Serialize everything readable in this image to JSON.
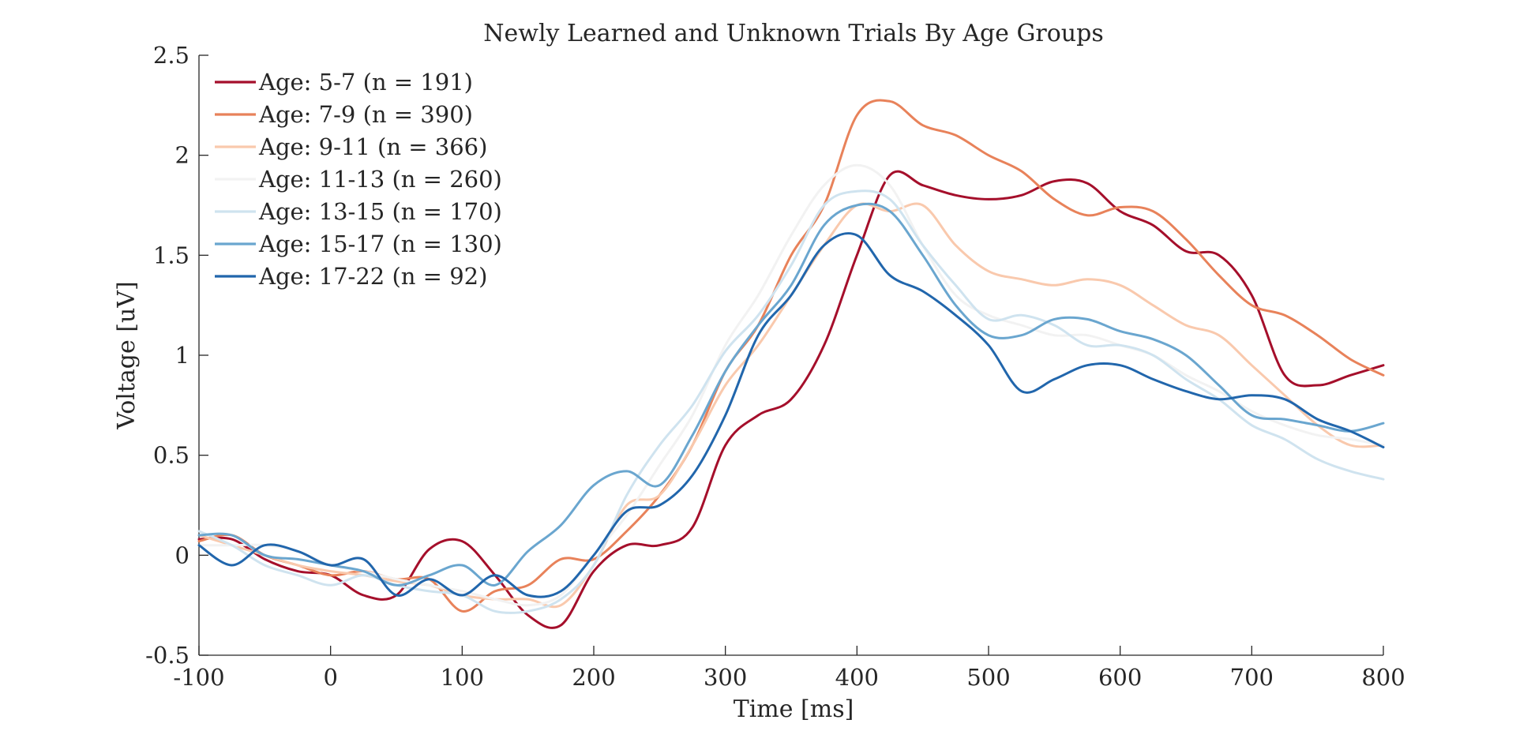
{
  "chart_data": {
    "type": "line",
    "title": "Newly Learned and Unknown Trials By Age Groups",
    "xlabel": "Time [ms]",
    "ylabel": "Voltage [uV]",
    "xlim": [
      -100,
      800
    ],
    "ylim": [
      -0.5,
      2.5
    ],
    "xticks": [
      -100,
      0,
      100,
      200,
      300,
      400,
      500,
      600,
      700,
      800
    ],
    "yticks": [
      -0.5,
      0,
      0.5,
      1,
      1.5,
      2,
      2.5
    ],
    "xtick_labels": [
      "-100",
      "0",
      "100",
      "200",
      "300",
      "400",
      "500",
      "600",
      "700",
      "800"
    ],
    "ytick_labels": [
      "-0.5",
      "0",
      "0.5",
      "1",
      "1.5",
      "2",
      "2.5"
    ],
    "grid": false,
    "legend_position": "top-left",
    "x": [
      -100,
      -75,
      -50,
      -25,
      0,
      25,
      50,
      75,
      100,
      125,
      150,
      175,
      200,
      225,
      250,
      275,
      300,
      325,
      350,
      375,
      400,
      425,
      450,
      475,
      500,
      525,
      550,
      575,
      600,
      625,
      650,
      675,
      700,
      725,
      750,
      775,
      800
    ],
    "series": [
      {
        "name": "Age: 5-7 (n = 191)",
        "color": "#a50f2b",
        "values": [
          0.08,
          0.08,
          -0.02,
          -0.08,
          -0.1,
          -0.2,
          -0.2,
          0.03,
          0.07,
          -0.1,
          -0.3,
          -0.35,
          -0.08,
          0.05,
          0.05,
          0.14,
          0.55,
          0.7,
          0.78,
          1.05,
          1.5,
          1.9,
          1.85,
          1.8,
          1.78,
          1.8,
          1.87,
          1.86,
          1.72,
          1.65,
          1.52,
          1.5,
          1.3,
          0.9,
          0.85,
          0.9,
          0.95
        ]
      },
      {
        "name": "Age: 7-9 (n = 390)",
        "color": "#e8825a",
        "values": [
          0.07,
          0.1,
          0.0,
          -0.05,
          -0.1,
          -0.08,
          -0.12,
          -0.12,
          -0.28,
          -0.18,
          -0.15,
          -0.02,
          -0.02,
          0.12,
          0.3,
          0.55,
          0.92,
          1.15,
          1.5,
          1.75,
          2.2,
          2.27,
          2.15,
          2.1,
          2.0,
          1.92,
          1.78,
          1.7,
          1.74,
          1.72,
          1.58,
          1.4,
          1.25,
          1.2,
          1.1,
          0.98,
          0.9
        ]
      },
      {
        "name": "Age: 9-11 (n = 366)",
        "color": "#f9c9ad",
        "values": [
          0.1,
          0.05,
          0.0,
          -0.05,
          -0.08,
          -0.1,
          -0.13,
          -0.15,
          -0.2,
          -0.22,
          -0.22,
          -0.25,
          -0.05,
          0.25,
          0.3,
          0.55,
          0.85,
          1.05,
          1.3,
          1.55,
          1.75,
          1.72,
          1.75,
          1.55,
          1.42,
          1.38,
          1.35,
          1.38,
          1.35,
          1.25,
          1.15,
          1.1,
          0.95,
          0.8,
          0.65,
          0.55,
          0.55
        ]
      },
      {
        "name": "Age: 11-13 (n = 260)",
        "color": "#f2f2f2",
        "values": [
          0.05,
          0.05,
          0.05,
          0.02,
          -0.05,
          -0.08,
          -0.12,
          -0.15,
          -0.18,
          -0.22,
          -0.25,
          -0.2,
          0.0,
          0.2,
          0.45,
          0.7,
          1.05,
          1.3,
          1.6,
          1.85,
          1.95,
          1.85,
          1.55,
          1.3,
          1.2,
          1.15,
          1.1,
          1.1,
          1.05,
          1.0,
          0.9,
          0.82,
          0.72,
          0.65,
          0.6,
          0.58,
          0.55
        ]
      },
      {
        "name": "Age: 13-15 (n = 170)",
        "color": "#cfe3ef",
        "values": [
          0.12,
          0.05,
          -0.05,
          -0.1,
          -0.15,
          -0.1,
          -0.15,
          -0.18,
          -0.2,
          -0.28,
          -0.28,
          -0.22,
          -0.05,
          0.3,
          0.55,
          0.75,
          1.02,
          1.2,
          1.45,
          1.75,
          1.82,
          1.78,
          1.55,
          1.35,
          1.18,
          1.2,
          1.15,
          1.05,
          1.05,
          1.0,
          0.88,
          0.78,
          0.65,
          0.58,
          0.48,
          0.42,
          0.38
        ]
      },
      {
        "name": "Age: 15-17 (n = 130)",
        "color": "#6aa6cf",
        "values": [
          0.1,
          0.1,
          0.0,
          -0.02,
          -0.05,
          -0.08,
          -0.15,
          -0.1,
          -0.05,
          -0.15,
          0.02,
          0.15,
          0.35,
          0.42,
          0.35,
          0.6,
          0.92,
          1.15,
          1.35,
          1.65,
          1.75,
          1.72,
          1.5,
          1.25,
          1.1,
          1.1,
          1.18,
          1.18,
          1.12,
          1.08,
          1.0,
          0.85,
          0.7,
          0.68,
          0.65,
          0.62,
          0.66
        ]
      },
      {
        "name": "Age: 17-22 (n = 92)",
        "color": "#2166ac",
        "values": [
          0.05,
          -0.05,
          0.05,
          0.02,
          -0.05,
          -0.02,
          -0.2,
          -0.12,
          -0.2,
          -0.1,
          -0.2,
          -0.18,
          0.0,
          0.22,
          0.25,
          0.4,
          0.7,
          1.1,
          1.3,
          1.55,
          1.6,
          1.4,
          1.32,
          1.2,
          1.05,
          0.82,
          0.88,
          0.95,
          0.95,
          0.88,
          0.82,
          0.78,
          0.8,
          0.78,
          0.68,
          0.62,
          0.54
        ]
      }
    ]
  }
}
